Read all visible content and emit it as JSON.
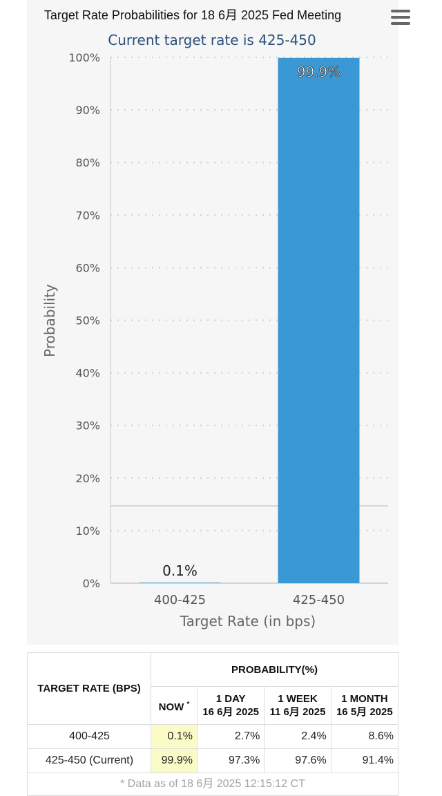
{
  "colors": {
    "bar": "#3a98d4",
    "panel": "#f6f6f6",
    "subtitle": "#2a4f7a",
    "now_cell": "#fbfbc8"
  },
  "header": {
    "menu_icon": "hamburger-menu-icon"
  },
  "chart_data": {
    "type": "bar",
    "title": "Target Rate Probabilities for 18 6月 2025 Fed Meeting",
    "subtitle": "Current target rate is 425-450",
    "xlabel": "Target Rate (in bps)",
    "ylabel": "Probability",
    "ylim": [
      0,
      100
    ],
    "yticks": [
      "0%",
      "10%",
      "20%",
      "30%",
      "40%",
      "50%",
      "60%",
      "70%",
      "80%",
      "90%",
      "100%"
    ],
    "categories": [
      "400-425",
      "425-450"
    ],
    "values": [
      0.1,
      99.9
    ],
    "data_labels": [
      "0.1%",
      "99.9%"
    ],
    "reference_line": 14.7,
    "grid": true,
    "legend": "none"
  },
  "table": {
    "rate_header": "TARGET RATE (BPS)",
    "prob_header": "PROBABILITY(%)",
    "now_label": "NOW",
    "now_mark": "*",
    "cols": [
      {
        "label": "1 DAY",
        "date": "16 6月 2025"
      },
      {
        "label": "1 WEEK",
        "date": "11 6月 2025"
      },
      {
        "label": "1 MONTH",
        "date": "16 5月 2025"
      }
    ],
    "rows": [
      {
        "rate": "400-425",
        "now": "0.1%",
        "v1": "2.7%",
        "v2": "2.4%",
        "v3": "8.6%"
      },
      {
        "rate": "425-450 (Current)",
        "now": "99.9%",
        "v1": "97.3%",
        "v2": "97.6%",
        "v3": "91.4%"
      }
    ],
    "footnote": "* Data as of 18 6月 2025 12:15:12 CT"
  }
}
